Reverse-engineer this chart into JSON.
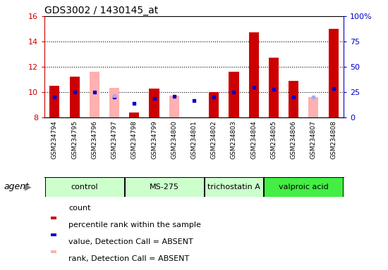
{
  "title": "GDS3002 / 1430145_at",
  "samples": [
    "GSM234794",
    "GSM234795",
    "GSM234796",
    "GSM234797",
    "GSM234798",
    "GSM234799",
    "GSM234800",
    "GSM234801",
    "GSM234802",
    "GSM234803",
    "GSM234804",
    "GSM234805",
    "GSM234806",
    "GSM234807",
    "GSM234808"
  ],
  "red_values": [
    10.5,
    11.2,
    null,
    null,
    8.4,
    10.3,
    null,
    null,
    10.0,
    11.6,
    14.7,
    12.7,
    10.9,
    null,
    15.0
  ],
  "pink_values": [
    null,
    null,
    11.6,
    10.35,
    null,
    null,
    9.7,
    null,
    null,
    null,
    null,
    null,
    null,
    9.6,
    null
  ],
  "blue_squares": [
    9.6,
    10.0,
    10.0,
    9.6,
    9.1,
    9.5,
    9.65,
    9.35,
    9.6,
    10.0,
    10.4,
    10.2,
    9.6,
    null,
    10.3
  ],
  "lavender_squares": [
    null,
    null,
    null,
    9.75,
    null,
    null,
    null,
    null,
    null,
    null,
    null,
    null,
    null,
    9.6,
    null
  ],
  "ymin": 8,
  "ymax": 16,
  "y2min": 0,
  "y2max": 100,
  "yticks": [
    8,
    10,
    12,
    14,
    16
  ],
  "y2ticks": [
    0,
    25,
    50,
    75,
    100
  ],
  "y2ticklabels": [
    "0",
    "25",
    "50",
    "75",
    "100%"
  ],
  "groups": [
    {
      "label": "control",
      "start": 0,
      "end": 3,
      "color": "#ccffcc"
    },
    {
      "label": "MS-275",
      "start": 4,
      "end": 7,
      "color": "#ccffcc"
    },
    {
      "label": "trichostatin A",
      "start": 8,
      "end": 10,
      "color": "#ccffcc"
    },
    {
      "label": "valproic acid",
      "start": 11,
      "end": 14,
      "color": "#44ee44"
    }
  ],
  "bar_width": 0.5,
  "plot_bg": "#ffffff",
  "tick_bg": "#cccccc",
  "red_color": "#cc0000",
  "pink_color": "#ffb0b0",
  "blue_color": "#0000cc",
  "lavender_color": "#aaaaee",
  "legend_items": [
    {
      "label": "count",
      "color": "#cc0000"
    },
    {
      "label": "percentile rank within the sample",
      "color": "#0000cc"
    },
    {
      "label": "value, Detection Call = ABSENT",
      "color": "#ffb0b0"
    },
    {
      "label": "rank, Detection Call = ABSENT",
      "color": "#aaaaee"
    }
  ]
}
